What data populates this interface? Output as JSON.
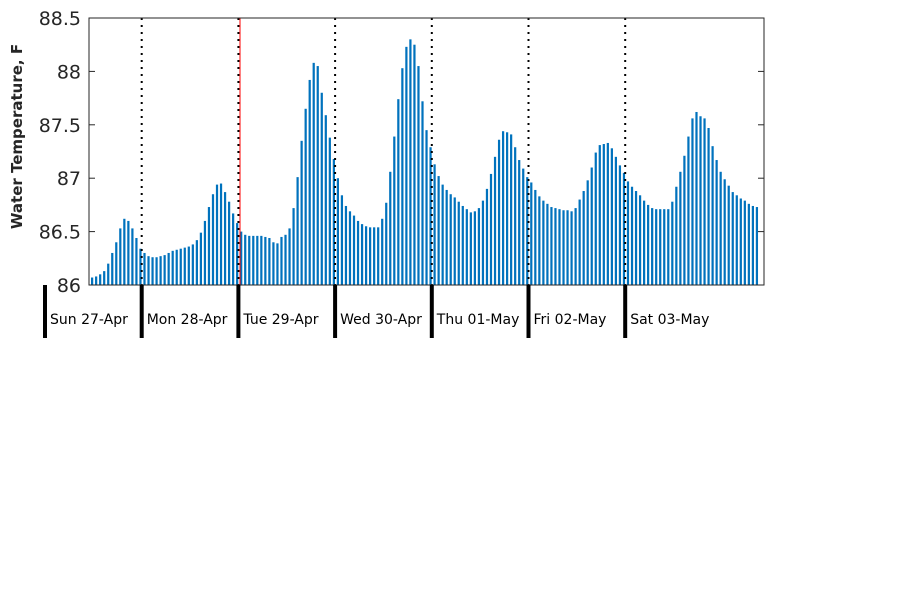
{
  "chart_data": {
    "type": "bar",
    "title": "",
    "xlabel": "",
    "ylabel": "Water Temperature, F",
    "ylim": [
      86,
      88.5
    ],
    "yticks": [
      "86",
      "86.5",
      "87",
      "87.5",
      "88",
      "88.5"
    ],
    "grid": false,
    "bar_color": "#0072bd",
    "day_labels": [
      "Sun 27-Apr",
      "Mon 28-Apr",
      "Tue 29-Apr",
      "Wed 30-Apr",
      "Thu 01-May",
      "Fri 02-May",
      "Sat 03-May"
    ],
    "hours_per_bar": 1,
    "red_marker_hour": 36,
    "values": [
      86.07,
      86.08,
      86.1,
      86.13,
      86.2,
      86.3,
      86.4,
      86.53,
      86.62,
      86.6,
      86.53,
      86.44,
      86.34,
      86.3,
      86.27,
      86.26,
      86.26,
      86.27,
      86.28,
      86.3,
      86.32,
      86.33,
      86.34,
      86.35,
      86.36,
      86.38,
      86.42,
      86.49,
      86.6,
      86.73,
      86.85,
      86.94,
      86.95,
      86.87,
      86.78,
      86.67,
      86.58,
      86.5,
      86.47,
      86.46,
      86.46,
      86.46,
      86.46,
      86.45,
      86.44,
      86.4,
      86.39,
      86.45,
      86.47,
      86.53,
      86.72,
      87.01,
      87.35,
      87.65,
      87.92,
      88.08,
      88.05,
      87.8,
      87.59,
      87.38,
      87.18,
      87.0,
      86.84,
      86.74,
      86.69,
      86.65,
      86.6,
      86.57,
      86.55,
      86.54,
      86.54,
      86.54,
      86.62,
      86.77,
      87.06,
      87.39,
      87.74,
      88.03,
      88.23,
      88.3,
      88.25,
      88.05,
      87.72,
      87.45,
      87.29,
      87.13,
      87.02,
      86.94,
      86.89,
      86.85,
      86.82,
      86.78,
      86.74,
      86.71,
      86.68,
      86.69,
      86.72,
      86.79,
      86.9,
      87.04,
      87.2,
      87.36,
      87.44,
      87.43,
      87.41,
      87.29,
      87.17,
      87.09,
      87.01,
      86.96,
      86.89,
      86.83,
      86.79,
      86.76,
      86.73,
      86.72,
      86.71,
      86.7,
      86.7,
      86.69,
      86.72,
      86.8,
      86.88,
      86.98,
      87.1,
      87.24,
      87.31,
      87.32,
      87.33,
      87.28,
      87.2,
      87.12,
      87.05,
      86.97,
      86.92,
      86.88,
      86.84,
      86.79,
      86.75,
      86.72,
      86.71,
      86.71,
      86.71,
      86.71,
      86.78,
      86.92,
      87.06,
      87.21,
      87.39,
      87.56,
      87.62,
      87.58,
      87.56,
      87.47,
      87.3,
      87.17,
      87.06,
      86.99,
      86.93,
      86.87,
      86.84,
      86.81,
      86.79,
      86.76,
      86.74,
      86.73
    ]
  }
}
